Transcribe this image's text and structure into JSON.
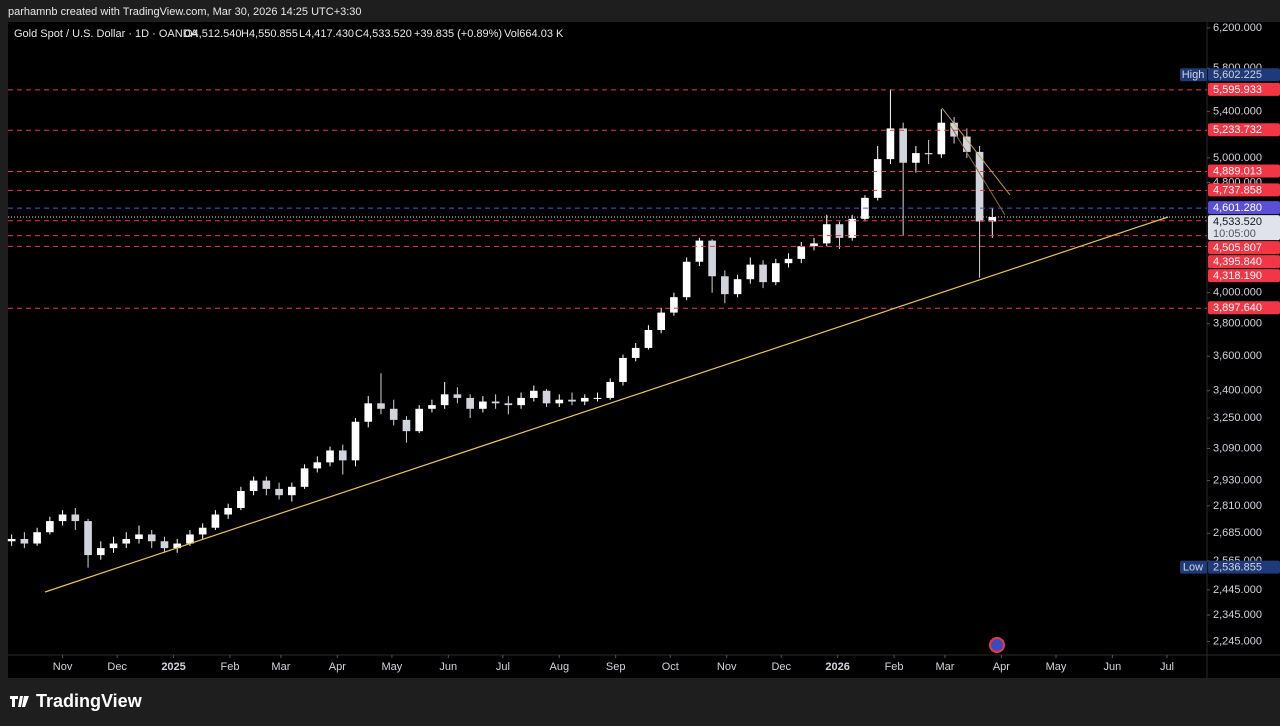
{
  "header": "parhamnb created with TradingView.com, Mar 30, 2026 14:25 UTC+3:30",
  "footer_brand": "TradingView",
  "chart_data": {
    "type": "candlestick",
    "legend": {
      "symbol": "Gold Spot / U.S. Dollar · 1D · OANDA",
      "open": "O4,512.540",
      "high": "H4,550.855",
      "low": "L4,417.430",
      "close": "C4,533.520",
      "change": "+39.835 (+0.89%)",
      "volume": "Vol664.03 K"
    },
    "x": [
      2,
      9,
      16,
      23,
      30,
      37,
      44,
      51,
      58,
      65,
      72,
      79,
      86,
      93,
      100,
      107,
      114,
      121,
      128,
      135,
      142,
      149,
      156,
      163,
      170,
      177,
      184,
      191,
      198,
      205,
      212,
      219,
      226,
      233,
      240,
      247,
      254,
      261,
      268,
      275,
      282,
      289,
      296,
      303,
      310,
      317,
      324,
      331,
      338,
      345,
      352,
      359,
      366,
      373,
      380,
      387,
      394,
      401,
      408,
      415,
      422,
      429,
      436,
      443,
      450,
      457,
      464,
      471,
      478,
      485,
      492,
      499,
      506,
      513,
      520,
      527,
      534,
      541
    ],
    "ohlc": [
      [
        2650,
        2680,
        2630,
        2660
      ],
      [
        2660,
        2690,
        2620,
        2640
      ],
      [
        2640,
        2710,
        2630,
        2690
      ],
      [
        2690,
        2760,
        2680,
        2740
      ],
      [
        2740,
        2790,
        2720,
        2770
      ],
      [
        2770,
        2800,
        2700,
        2740
      ],
      [
        2740,
        2750,
        2536.855,
        2590
      ],
      [
        2590,
        2650,
        2570,
        2620
      ],
      [
        2620,
        2670,
        2600,
        2640
      ],
      [
        2640,
        2690,
        2620,
        2660
      ],
      [
        2660,
        2720,
        2640,
        2680
      ],
      [
        2680,
        2700,
        2620,
        2650
      ],
      [
        2650,
        2670,
        2600,
        2620
      ],
      [
        2620,
        2660,
        2600,
        2640
      ],
      [
        2640,
        2700,
        2630,
        2680
      ],
      [
        2680,
        2730,
        2660,
        2710
      ],
      [
        2710,
        2790,
        2700,
        2770
      ],
      [
        2770,
        2820,
        2750,
        2800
      ],
      [
        2800,
        2900,
        2790,
        2880
      ],
      [
        2880,
        2950,
        2860,
        2930
      ],
      [
        2930,
        2950,
        2860,
        2890
      ],
      [
        2890,
        2920,
        2840,
        2860
      ],
      [
        2860,
        2920,
        2830,
        2900
      ],
      [
        2900,
        3010,
        2890,
        2990
      ],
      [
        2990,
        3050,
        2970,
        3020
      ],
      [
        3020,
        3100,
        3000,
        3080
      ],
      [
        3080,
        3110,
        2960,
        3030
      ],
      [
        3030,
        3250,
        3000,
        3230
      ],
      [
        3230,
        3370,
        3200,
        3330
      ],
      [
        3330,
        3500,
        3270,
        3300
      ],
      [
        3300,
        3350,
        3210,
        3240
      ],
      [
        3240,
        3260,
        3120,
        3180
      ],
      [
        3180,
        3320,
        3170,
        3300
      ],
      [
        3300,
        3350,
        3280,
        3320
      ],
      [
        3320,
        3450,
        3300,
        3380
      ],
      [
        3380,
        3420,
        3330,
        3360
      ],
      [
        3360,
        3380,
        3250,
        3300
      ],
      [
        3300,
        3370,
        3280,
        3340
      ],
      [
        3340,
        3380,
        3300,
        3330
      ],
      [
        3330,
        3370,
        3270,
        3320
      ],
      [
        3320,
        3390,
        3300,
        3360
      ],
      [
        3360,
        3430,
        3340,
        3400
      ],
      [
        3400,
        3410,
        3310,
        3330
      ],
      [
        3330,
        3380,
        3310,
        3350
      ],
      [
        3350,
        3390,
        3320,
        3340
      ],
      [
        3340,
        3380,
        3320,
        3360
      ],
      [
        3360,
        3390,
        3340,
        3360
      ],
      [
        3360,
        3470,
        3350,
        3450
      ],
      [
        3450,
        3610,
        3430,
        3590
      ],
      [
        3590,
        3680,
        3570,
        3650
      ],
      [
        3650,
        3790,
        3640,
        3760
      ],
      [
        3760,
        3900,
        3740,
        3870
      ],
      [
        3870,
        4000,
        3850,
        3970
      ],
      [
        3970,
        4240,
        3950,
        4210
      ],
      [
        4210,
        4381,
        4180,
        4360
      ],
      [
        4360,
        4370,
        4000,
        4110
      ],
      [
        4110,
        4150,
        3930,
        3990
      ],
      [
        3990,
        4120,
        3970,
        4090
      ],
      [
        4090,
        4240,
        4060,
        4190
      ],
      [
        4190,
        4220,
        4030,
        4070
      ],
      [
        4070,
        4230,
        4050,
        4200
      ],
      [
        4200,
        4270,
        4170,
        4230
      ],
      [
        4230,
        4350,
        4200,
        4320
      ],
      [
        4320,
        4380,
        4290,
        4340
      ],
      [
        4340,
        4550,
        4320,
        4480
      ],
      [
        4480,
        4500,
        4300,
        4380
      ],
      [
        4380,
        4550,
        4360,
        4520
      ],
      [
        4520,
        4700,
        4500,
        4680
      ],
      [
        4680,
        5100,
        4660,
        4990
      ],
      [
        4990,
        5602.225,
        4950,
        5250
      ],
      [
        5250,
        5300,
        4400,
        4960
      ],
      [
        4960,
        5100,
        4880,
        5040
      ],
      [
        5040,
        5150,
        4950,
        5030
      ],
      [
        5030,
        5420,
        5000,
        5300
      ],
      [
        5300,
        5350,
        5120,
        5180
      ],
      [
        5180,
        5250,
        5000,
        5050
      ],
      [
        5050,
        5100,
        4100,
        4500
      ],
      [
        4500,
        4600,
        4380,
        4533.52
      ]
    ],
    "up_color": "#ffffff",
    "down_color": "#d1d4dc",
    "xlim": [
      0,
      659
    ],
    "xticks": [
      {
        "value": 30,
        "label": "Nov"
      },
      {
        "value": 60,
        "label": "Dec"
      },
      {
        "value": 91,
        "label": "2025"
      },
      {
        "value": 122,
        "label": "Feb"
      },
      {
        "value": 150,
        "label": "Mar"
      },
      {
        "value": 181,
        "label": "Apr"
      },
      {
        "value": 211,
        "label": "May"
      },
      {
        "value": 242,
        "label": "Jun"
      },
      {
        "value": 272,
        "label": "Jul"
      },
      {
        "value": 303,
        "label": "Aug"
      },
      {
        "value": 334,
        "label": "Sep"
      },
      {
        "value": 364,
        "label": "Oct"
      },
      {
        "value": 395,
        "label": "Nov"
      },
      {
        "value": 425,
        "label": "Dec"
      },
      {
        "value": 456,
        "label": "2026"
      },
      {
        "value": 487,
        "label": "Feb"
      },
      {
        "value": 515,
        "label": "Mar"
      },
      {
        "value": 546,
        "label": "Apr"
      },
      {
        "value": 576,
        "label": "May"
      },
      {
        "value": 607,
        "label": "Jun"
      },
      {
        "value": 637,
        "label": "Jul"
      }
    ],
    "ylim": [
      2195,
      6262
    ],
    "log_scale": true,
    "grid": false,
    "yticks": [
      {
        "value": 6200,
        "label": "6,200.000"
      },
      {
        "value": 5800,
        "label": "5,800.000"
      },
      {
        "value": 5400,
        "label": "5,400.000"
      },
      {
        "value": 5000,
        "label": "5,000.000"
      },
      {
        "value": 4800,
        "label": "4,800.000"
      },
      {
        "value": 4000,
        "label": "4,000.000"
      },
      {
        "value": 3800,
        "label": "3,800.000"
      },
      {
        "value": 3600,
        "label": "3,600.000"
      },
      {
        "value": 3400,
        "label": "3,400.000"
      },
      {
        "value": 3250,
        "label": "3,250.000"
      },
      {
        "value": 3090,
        "label": "3,090.000"
      },
      {
        "value": 2930,
        "label": "2,930.000"
      },
      {
        "value": 2810,
        "label": "2,810.000"
      },
      {
        "value": 2685,
        "label": "2,685.000"
      },
      {
        "value": 2565,
        "label": "2,565.000"
      },
      {
        "value": 2445,
        "label": "2,445.000"
      },
      {
        "value": 2345,
        "label": "2,345.000"
      },
      {
        "value": 2245,
        "label": "2,245.000"
      }
    ],
    "levels": [
      {
        "value": 5595.933,
        "label": "5,595.933",
        "color": "#f23645"
      },
      {
        "value": 5233.732,
        "label": "5,233.732",
        "color": "#f23645"
      },
      {
        "value": 4889.013,
        "label": "4,889.013",
        "color": "#f23645"
      },
      {
        "value": 4737.858,
        "label": "4,737.858",
        "color": "#f23645"
      },
      {
        "value": 4601.28,
        "label": "4,601.280",
        "color": "#5b4fd8"
      },
      {
        "value": 4505.807,
        "label": "4,505.807",
        "color": "#f23645"
      },
      {
        "value": 4395.84,
        "label": "4,395.840",
        "color": "#f23645"
      },
      {
        "value": 4318.19,
        "label": "4,318.190",
        "color": "#f23645"
      },
      {
        "value": 3897.64,
        "label": "3,897.640",
        "color": "#f23645"
      }
    ],
    "high": {
      "label": "High",
      "value": 5602.225,
      "value_label": "5,602.225",
      "color": "#1e3a78"
    },
    "low": {
      "label": "Low",
      "value": 2536.855,
      "value_label": "2,536.855",
      "color": "#1e3a78"
    },
    "last": {
      "value": 4533.52,
      "value_label": "4,533.520",
      "countdown": "10:05:00",
      "color": "#e0e3eb"
    }
  }
}
